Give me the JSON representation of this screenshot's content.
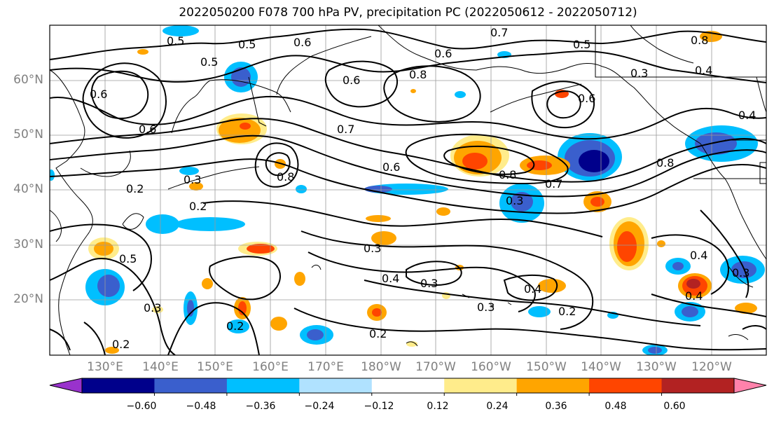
{
  "title": "2022050200 F078 700 hPa PV, precipitation PC (2022050612 - 2022050712)",
  "lat_labels": [
    "60°N",
    "50°N",
    "40°N",
    "30°N",
    "20°N"
  ],
  "lon_labels": [
    "130°E",
    "140°E",
    "150°E",
    "160°E",
    "170°E",
    "180°W",
    "170°W",
    "160°W",
    "150°W",
    "140°W",
    "130°W",
    "120°W"
  ],
  "colorbar": {
    "ticks": [
      "−0.60",
      "−0.48",
      "−0.36",
      "−0.24",
      "−0.12",
      "0.12",
      "0.24",
      "0.36",
      "0.48",
      "0.60"
    ],
    "colors": [
      "#9932CC",
      "#00008B",
      "#3A5FCD",
      "#00BFFF",
      "#B0E2FF",
      "#FFFFFF",
      "#FFEC8B",
      "#FFA500",
      "#FF4500",
      "#B22222",
      "#FF82AB"
    ]
  },
  "contour_labels": {
    "c1": "0.5",
    "c2": "0.5",
    "c3": "0.6",
    "c4": "0.7",
    "c5": "0.5",
    "c6": "0.5",
    "c7": "0.6",
    "c8": "0.8",
    "c9": "0.8",
    "c10": "0.3",
    "c11": "0.4",
    "c12": "0.6",
    "c13": "0.7",
    "c14": "0.6",
    "c15": "0.8",
    "c16": "0.8",
    "c17": "0.7",
    "c18": "0.8",
    "c19": "0.4",
    "c20": "0.2",
    "c21": "0.3",
    "c22": "0.2",
    "c23": "0.5",
    "c24": "0.3",
    "c25": "0.3",
    "c26": "0.4",
    "c27": "0.3",
    "c28": "0.4",
    "c29": "0.4",
    "c30": "0.3",
    "c31": "0.2",
    "c32": "0.2",
    "c33": "0.2",
    "c34": "0.3",
    "c35": "0.4",
    "c36": "0.2",
    "c37": "0.6",
    "c38": "0.6",
    "c39": "0.6",
    "c40": "0.3"
  }
}
